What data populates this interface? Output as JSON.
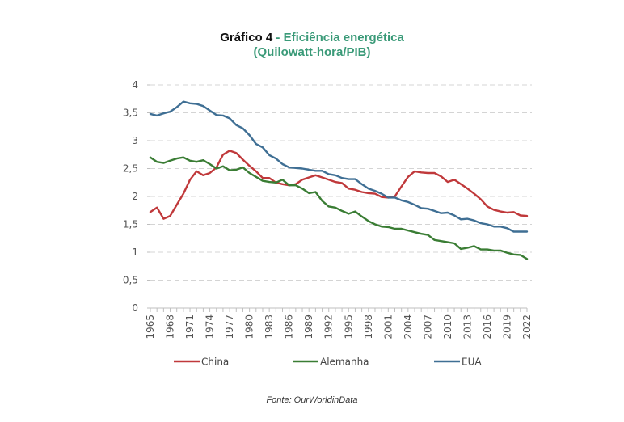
{
  "chart_data": {
    "type": "line",
    "title_prefix": "Gráfico 4",
    "title_separator": " - ",
    "title_main": "Eficiência energética",
    "subtitle": "(Quilowatt-hora/PIB)",
    "xlabel": "",
    "ylabel": "",
    "ylim": [
      0,
      4
    ],
    "xlim": [
      1965,
      2022
    ],
    "grid": true,
    "legend_position": "bottom",
    "y_ticks": [
      "0",
      "0,5",
      "1",
      "1,5",
      "2",
      "2,5",
      "3",
      "3,5",
      "4"
    ],
    "y_tick_values": [
      0,
      0.5,
      1,
      1.5,
      2,
      2.5,
      3,
      3.5,
      4
    ],
    "x_tick_labels": [
      "1965",
      "1968",
      "1971",
      "1974",
      "1977",
      "1980",
      "1983",
      "1986",
      "1989",
      "1992",
      "1995",
      "1998",
      "2001",
      "2004",
      "2007",
      "2010",
      "2013",
      "2016",
      "2019",
      "2022"
    ],
    "x": [
      1965,
      1966,
      1967,
      1968,
      1969,
      1970,
      1971,
      1972,
      1973,
      1974,
      1975,
      1976,
      1977,
      1978,
      1979,
      1980,
      1981,
      1982,
      1983,
      1984,
      1985,
      1986,
      1987,
      1988,
      1989,
      1990,
      1991,
      1992,
      1993,
      1994,
      1995,
      1996,
      1997,
      1998,
      1999,
      2000,
      2001,
      2002,
      2003,
      2004,
      2005,
      2006,
      2007,
      2008,
      2009,
      2010,
      2011,
      2012,
      2013,
      2014,
      2015,
      2016,
      2017,
      2018,
      2019,
      2020,
      2021,
      2022
    ],
    "series": [
      {
        "name": "China",
        "color": "#c0393b",
        "values": [
          1.72,
          1.8,
          1.6,
          1.65,
          1.85,
          2.05,
          2.3,
          2.45,
          2.38,
          2.42,
          2.52,
          2.75,
          2.82,
          2.78,
          2.66,
          2.55,
          2.45,
          2.33,
          2.33,
          2.25,
          2.22,
          2.2,
          2.22,
          2.3,
          2.34,
          2.38,
          2.34,
          2.3,
          2.26,
          2.24,
          2.14,
          2.12,
          2.08,
          2.06,
          2.05,
          1.99,
          1.98,
          2.0,
          2.18,
          2.35,
          2.45,
          2.43,
          2.42,
          2.42,
          2.36,
          2.26,
          2.3,
          2.22,
          2.14,
          2.05,
          1.95,
          1.82,
          1.76,
          1.73,
          1.71,
          1.72,
          1.66,
          1.65
        ]
      },
      {
        "name": "Alemanha",
        "color": "#3a7d34",
        "values": [
          2.7,
          2.62,
          2.6,
          2.64,
          2.68,
          2.7,
          2.64,
          2.62,
          2.65,
          2.58,
          2.5,
          2.54,
          2.47,
          2.48,
          2.52,
          2.42,
          2.35,
          2.28,
          2.26,
          2.25,
          2.3,
          2.2,
          2.2,
          2.14,
          2.06,
          2.08,
          1.92,
          1.82,
          1.8,
          1.74,
          1.69,
          1.73,
          1.64,
          1.56,
          1.5,
          1.46,
          1.45,
          1.42,
          1.42,
          1.39,
          1.36,
          1.33,
          1.31,
          1.22,
          1.2,
          1.18,
          1.16,
          1.06,
          1.08,
          1.11,
          1.05,
          1.05,
          1.03,
          1.03,
          0.99,
          0.96,
          0.95,
          0.88
        ]
      },
      {
        "name": "EUA",
        "color": "#3f6f94",
        "values": [
          3.48,
          3.45,
          3.49,
          3.52,
          3.6,
          3.7,
          3.67,
          3.66,
          3.62,
          3.54,
          3.46,
          3.45,
          3.4,
          3.28,
          3.22,
          3.1,
          2.94,
          2.88,
          2.74,
          2.68,
          2.58,
          2.52,
          2.51,
          2.5,
          2.48,
          2.46,
          2.46,
          2.4,
          2.38,
          2.33,
          2.31,
          2.31,
          2.22,
          2.14,
          2.1,
          2.05,
          1.98,
          1.98,
          1.93,
          1.9,
          1.85,
          1.79,
          1.78,
          1.74,
          1.7,
          1.71,
          1.66,
          1.59,
          1.6,
          1.57,
          1.52,
          1.5,
          1.46,
          1.46,
          1.43,
          1.37,
          1.37,
          1.37
        ]
      }
    ]
  },
  "source": "Fonte: OurWorldinData"
}
